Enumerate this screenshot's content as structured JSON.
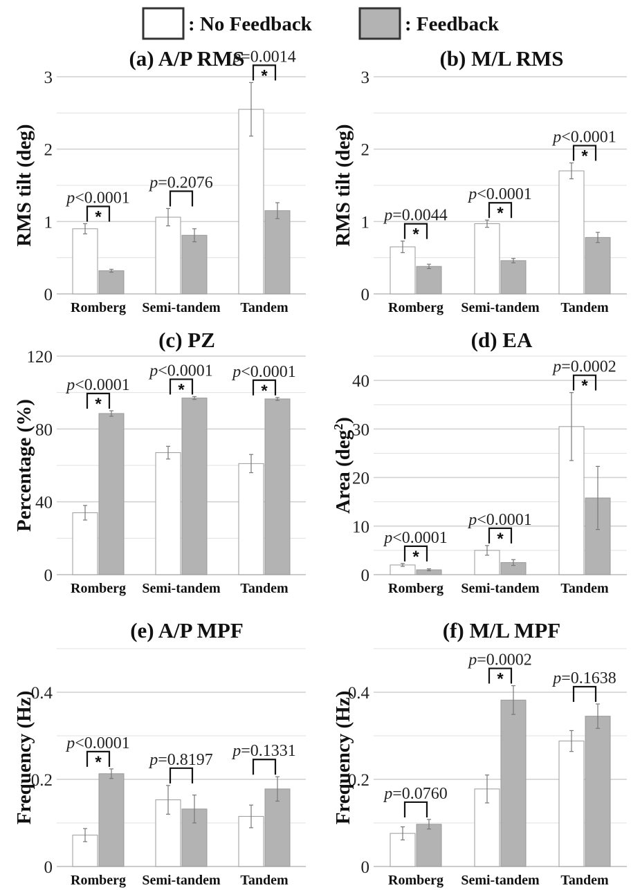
{
  "legend": {
    "no_feedback": ": No Feedback",
    "feedback": ": Feedback",
    "no_feedback_color": "#ffffff",
    "feedback_color": "#b3b3b3"
  },
  "chart_data": [
    {
      "type": "bar",
      "title": "(a) A/P RMS",
      "ylabel": "RMS tilt (deg)",
      "categories": [
        "Romberg",
        "Semi-tandem",
        "Tandem"
      ],
      "ylim": [
        0,
        3
      ],
      "yticks": [
        0,
        1,
        2,
        3
      ],
      "series": [
        {
          "name": "No Feedback",
          "values": [
            0.9,
            1.06,
            2.55
          ],
          "errors": [
            0.07,
            0.12,
            0.37
          ]
        },
        {
          "name": "Feedback",
          "values": [
            0.32,
            0.81,
            1.15
          ],
          "errors": [
            0.02,
            0.09,
            0.11
          ]
        }
      ],
      "pvalues": [
        {
          "op": "<",
          "value": "0.0001",
          "star": "*"
        },
        {
          "op": "=",
          "value": "0.2076",
          "star": ""
        },
        {
          "op": "=",
          "value": "0.0014",
          "star": "*"
        }
      ]
    },
    {
      "type": "bar",
      "title": "(b) M/L RMS",
      "ylabel": "RMS tilt (deg)",
      "categories": [
        "Romberg",
        "Semi-tandem",
        "Tandem"
      ],
      "ylim": [
        0,
        3
      ],
      "yticks": [
        0,
        1,
        2,
        3
      ],
      "series": [
        {
          "name": "No Feedback",
          "values": [
            0.65,
            0.97,
            1.7
          ],
          "errors": [
            0.08,
            0.05,
            0.11
          ]
        },
        {
          "name": "Feedback",
          "values": [
            0.38,
            0.46,
            0.78
          ],
          "errors": [
            0.03,
            0.03,
            0.07
          ]
        }
      ],
      "pvalues": [
        {
          "op": "=",
          "value": "0.0044",
          "star": "*"
        },
        {
          "op": "<",
          "value": "0.0001",
          "star": "*"
        },
        {
          "op": "<",
          "value": "0.0001",
          "star": "*"
        }
      ]
    },
    {
      "type": "bar",
      "title": "(c) PZ",
      "ylabel": "Percentage (%)",
      "categories": [
        "Romberg",
        "Semi-tandem",
        "Tandem"
      ],
      "ylim": [
        0,
        120
      ],
      "yticks": [
        0,
        40,
        80,
        120
      ],
      "series": [
        {
          "name": "No Feedback",
          "values": [
            34,
            67,
            61
          ],
          "errors": [
            4,
            3.5,
            5
          ]
        },
        {
          "name": "Feedback",
          "values": [
            88.5,
            97,
            96.5
          ],
          "errors": [
            1.5,
            0.8,
            0.8
          ]
        }
      ],
      "pvalues": [
        {
          "op": "<",
          "value": "0.0001",
          "star": "*"
        },
        {
          "op": "<",
          "value": "0.0001",
          "star": "*"
        },
        {
          "op": "<",
          "value": "0.0001",
          "star": "*"
        }
      ]
    },
    {
      "type": "bar",
      "title": "(d) EA",
      "ylabel": "Area (deg",
      "ylabel_sup": "2",
      "ylabel_end": ")",
      "categories": [
        "Romberg",
        "Semi-tandem",
        "Tandem"
      ],
      "ylim": [
        0,
        45
      ],
      "yticks": [
        0,
        10,
        20,
        30,
        40
      ],
      "ytick_labels": [
        0,
        10,
        20,
        30,
        40
      ],
      "series": [
        {
          "name": "No Feedback",
          "values": [
            2.0,
            5.0,
            30.5
          ],
          "errors": [
            0.3,
            1.0,
            7.0
          ]
        },
        {
          "name": "Feedback",
          "values": [
            1.0,
            2.5,
            15.8
          ],
          "errors": [
            0.2,
            0.6,
            6.5
          ]
        }
      ],
      "pvalues": [
        {
          "op": "<",
          "value": "0.0001",
          "star": "*"
        },
        {
          "op": "<",
          "value": "0.0001",
          "star": "*"
        },
        {
          "op": "=",
          "value": "0.0002",
          "star": "*"
        }
      ]
    },
    {
      "type": "bar",
      "title": "(e) A/P MPF",
      "ylabel": "Frequency (Hz)",
      "categories": [
        "Romberg",
        "Semi-tandem",
        "Tandem"
      ],
      "ylim": [
        0,
        0.5
      ],
      "yticks": [
        0,
        0.2,
        0.4
      ],
      "ytick_labels": [
        "0",
        "0.2",
        "0.4"
      ],
      "series": [
        {
          "name": "No Feedback",
          "values": [
            0.072,
            0.153,
            0.115
          ],
          "errors": [
            0.015,
            0.033,
            0.026
          ]
        },
        {
          "name": "Feedback",
          "values": [
            0.213,
            0.132,
            0.178
          ],
          "errors": [
            0.011,
            0.032,
            0.028
          ]
        }
      ],
      "pvalues": [
        {
          "op": "<",
          "value": "0.0001",
          "star": "*"
        },
        {
          "op": "=",
          "value": "0.8197",
          "star": ""
        },
        {
          "op": "=",
          "value": "0.1331",
          "star": ""
        }
      ]
    },
    {
      "type": "bar",
      "title": "(f) M/L MPF",
      "ylabel": "Frequency (Hz)",
      "categories": [
        "Romberg",
        "Semi-tandem",
        "Tandem"
      ],
      "ylim": [
        0,
        0.5
      ],
      "yticks": [
        0,
        0.2,
        0.4
      ],
      "ytick_labels": [
        "0",
        "0.2",
        "0.4"
      ],
      "series": [
        {
          "name": "No Feedback",
          "values": [
            0.076,
            0.178,
            0.288
          ],
          "errors": [
            0.015,
            0.032,
            0.024
          ]
        },
        {
          "name": "Feedback",
          "values": [
            0.097,
            0.382,
            0.345
          ],
          "errors": [
            0.011,
            0.033,
            0.028
          ]
        }
      ],
      "pvalues": [
        {
          "op": "=",
          "value": "0.0760",
          "star": ""
        },
        {
          "op": "=",
          "value": "0.0002",
          "star": "*"
        },
        {
          "op": "=",
          "value": "0.1638",
          "star": ""
        }
      ]
    }
  ]
}
